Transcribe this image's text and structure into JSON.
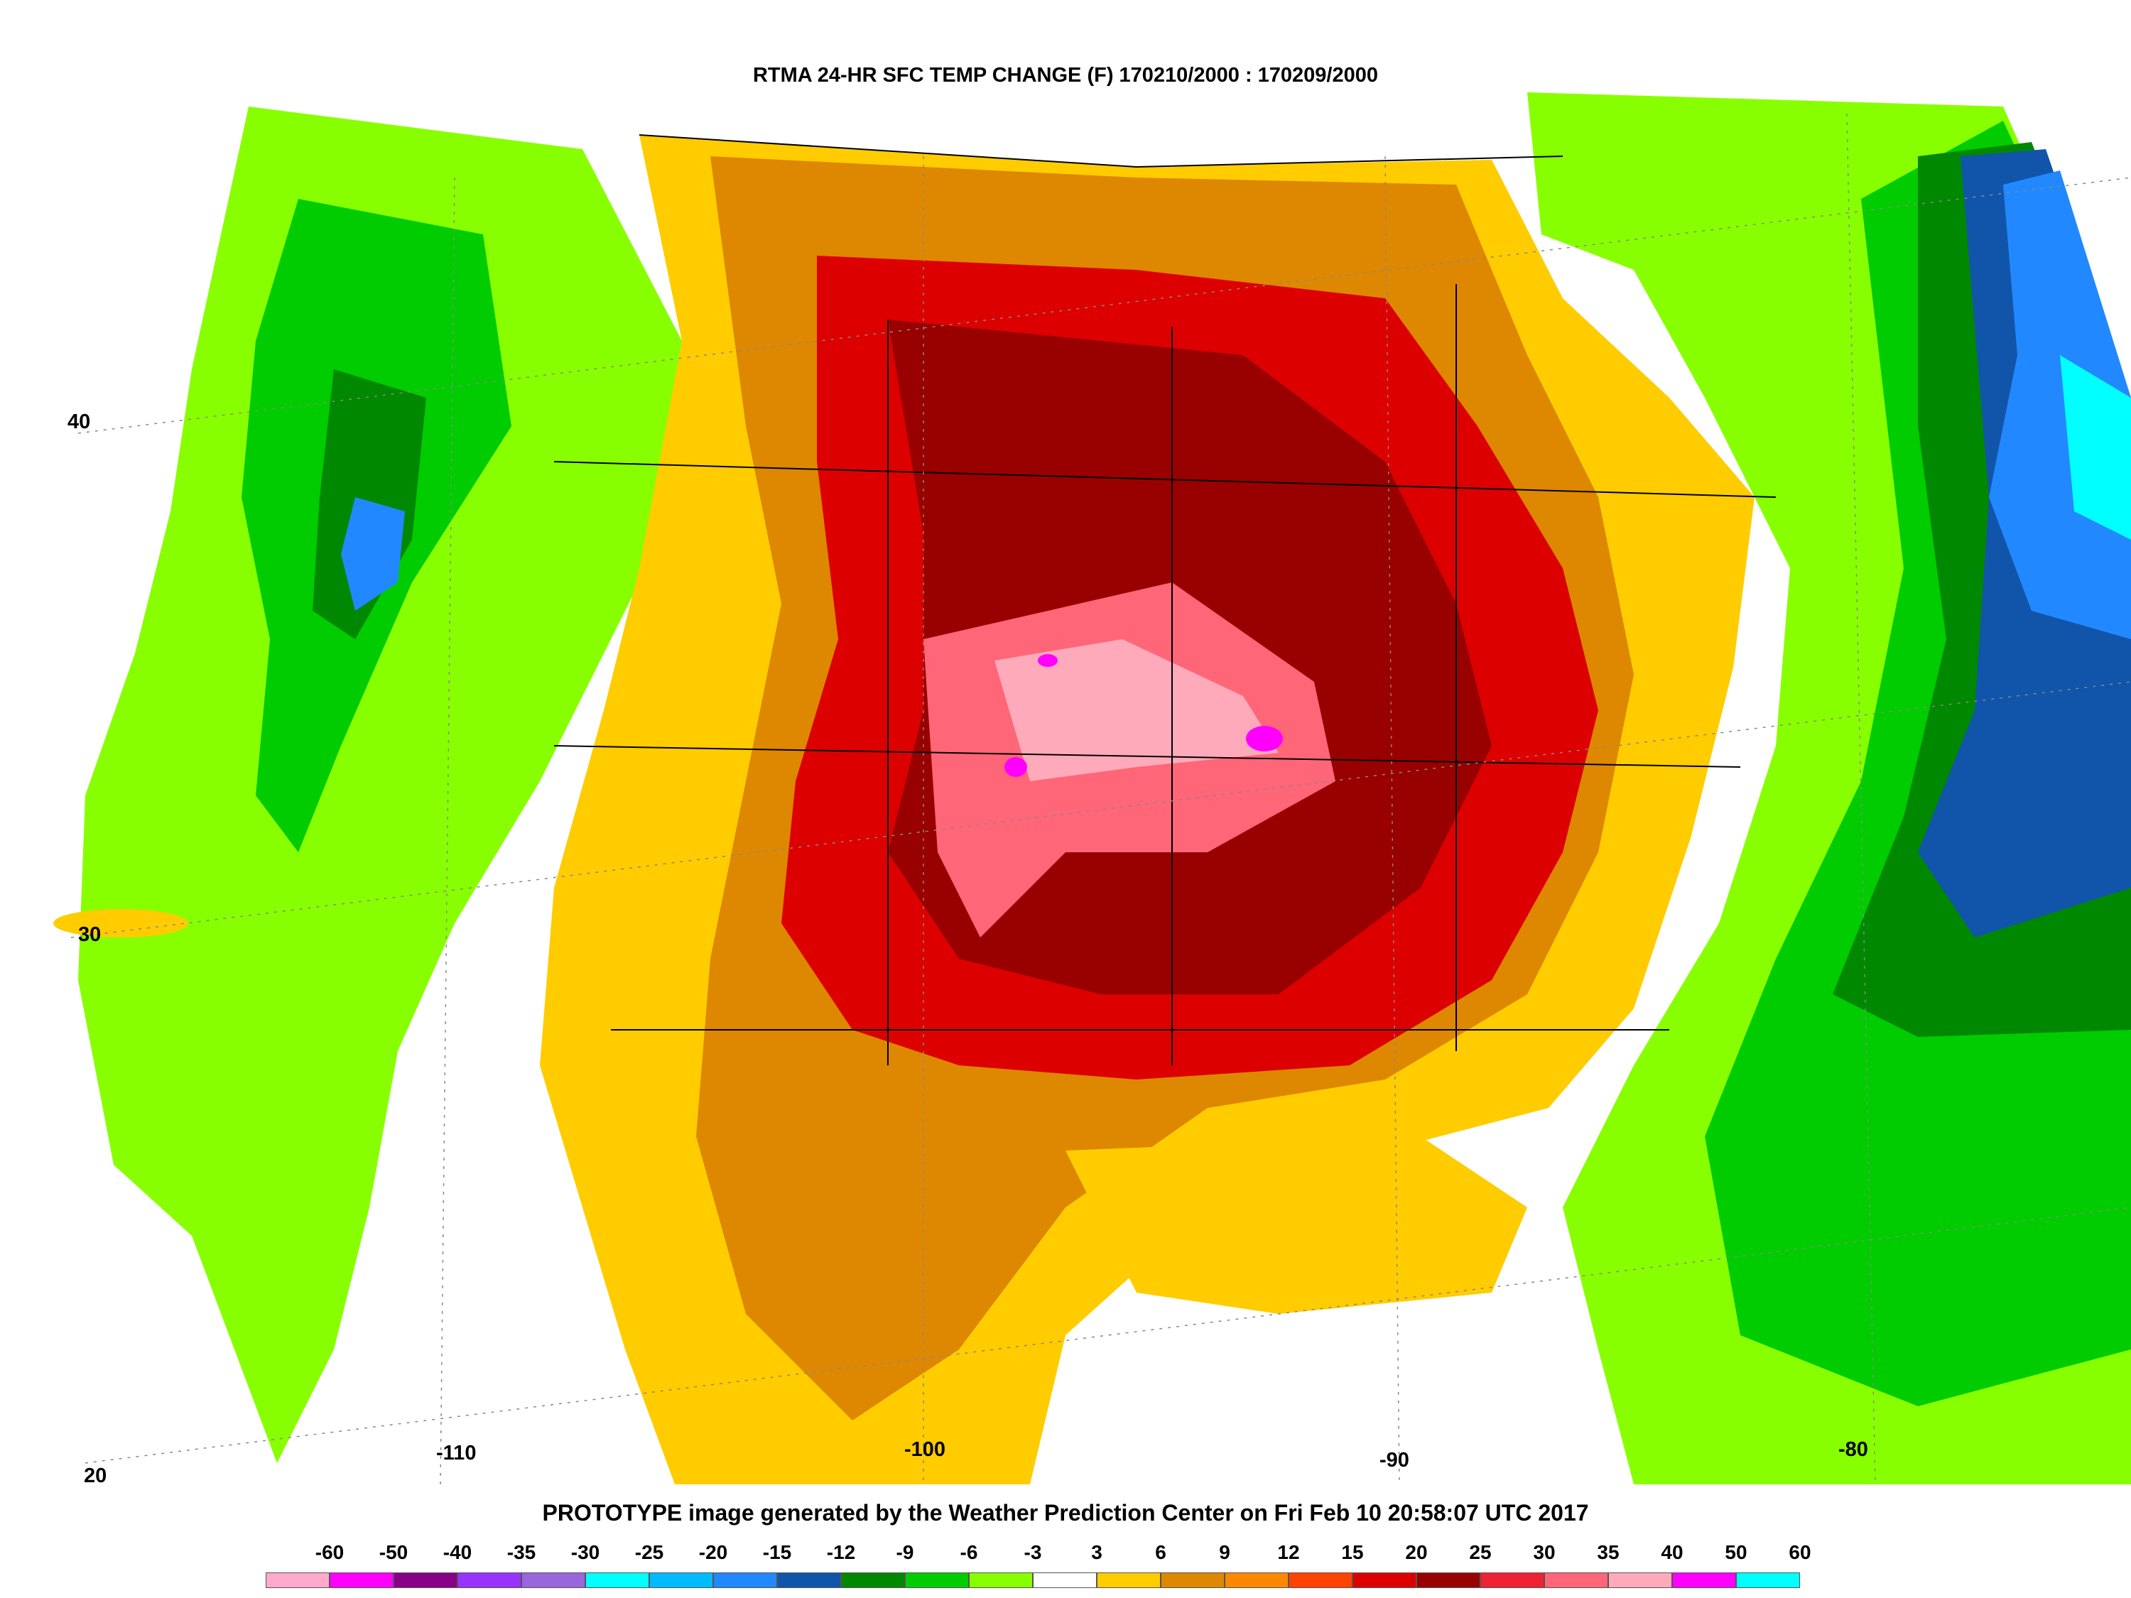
{
  "title": "RTMA 24-HR SFC TEMP CHANGE (F) 170210/2000 : 170209/2000",
  "footer": "PROTOTYPE image generated by the Weather Prediction Center on Fri Feb 10 20:58:07 UTC 2017",
  "latitude_labels": [
    "40",
    "30",
    "20"
  ],
  "longitude_labels": [
    "-110",
    "-100",
    "-90",
    "-80"
  ],
  "legend": {
    "labels": [
      "-60",
      "-50",
      "-40",
      "-35",
      "-30",
      "-25",
      "-20",
      "-15",
      "-12",
      "-9",
      "-6",
      "-3",
      "3",
      "6",
      "9",
      "12",
      "15",
      "20",
      "25",
      "30",
      "35",
      "40",
      "50",
      "60"
    ],
    "colors": [
      "#ffaacc",
      "#ff00ff",
      "#880088",
      "#9933ff",
      "#9966dd",
      "#00ffff",
      "#00bbff",
      "#2288ff",
      "#1155aa",
      "#008800",
      "#00cc00",
      "#88ff00",
      "#ffffff",
      "#ffcc00",
      "#dd8800",
      "#ff8800",
      "#ff4400",
      "#dd0000",
      "#990000",
      "#ee2233",
      "#ff6677",
      "#ffaabb",
      "#ff00ff",
      "#00ffff"
    ]
  },
  "colors": {
    "cool_strong": "#1155aa",
    "cool_mid": "#008800",
    "cool_light": "#88ff00",
    "warm_light": "#ffcc00",
    "warm_mid": "#dd8800",
    "warm_strong": "#dd0000",
    "warm_peak": "#ff6677"
  }
}
